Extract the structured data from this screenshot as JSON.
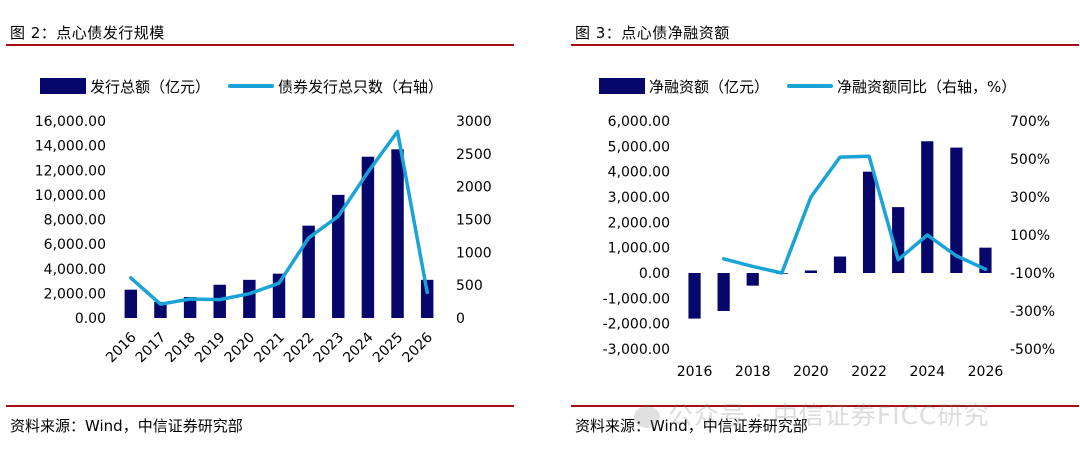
{
  "left": {
    "title": "图 2：点心债发行规模",
    "source": "资料来源：Wind，中信证券研究部",
    "legend": {
      "bar": "发行总额（亿元）",
      "line": "债券发行总只数（右轴）"
    }
  },
  "right": {
    "title": "图 3：点心债净融资额",
    "source": "资料来源：Wind，中信证券研究部",
    "legend": {
      "bar": "净融资额（亿元）",
      "line": "净融资额同比（右轴，%）"
    }
  },
  "watermark": "公众号 · 中信证券FICC研究",
  "colors": {
    "bar": "#06066b",
    "line": "#1aa3d6",
    "rule": "#a50f15"
  },
  "chart_data": [
    {
      "type": "bar",
      "title": "图 2：点心债发行规模",
      "categories": [
        "2016",
        "2017",
        "2018",
        "2019",
        "2020",
        "2021",
        "2022",
        "2023",
        "2024",
        "2025",
        "2026"
      ],
      "series": [
        {
          "name": "发行总额（亿元）",
          "type": "bar",
          "axis": "left",
          "values": [
            2300,
            1300,
            1700,
            2700,
            3100,
            3600,
            7500,
            10000,
            13100,
            13700,
            3100
          ]
        },
        {
          "name": "债券发行总只数（右轴）",
          "type": "line",
          "axis": "right",
          "values": [
            610,
            210,
            290,
            280,
            370,
            530,
            1220,
            1550,
            2220,
            2840,
            390
          ]
        }
      ],
      "ylim_left": [
        0,
        16000
      ],
      "yticks_left": [
        "16,000.00",
        "14,000.00",
        "12,000.00",
        "10,000.00",
        "8,000.00",
        "6,000.00",
        "4,000.00",
        "2,000.00",
        "0.00"
      ],
      "ylim_right": [
        0,
        3000
      ],
      "yticks_right": [
        "3000",
        "2500",
        "2000",
        "1500",
        "1000",
        "500",
        "0"
      ],
      "grid": false
    },
    {
      "type": "bar",
      "title": "图 3：点心债净融资额",
      "categories": [
        "2016",
        "2017",
        "2018",
        "2019",
        "2020",
        "2021",
        "2022",
        "2023",
        "2024",
        "2025",
        "2026"
      ],
      "xticks": [
        "2016",
        "2018",
        "2020",
        "2022",
        "2024",
        "2026"
      ],
      "series": [
        {
          "name": "净融资额（亿元）",
          "type": "bar",
          "axis": "left",
          "values": [
            -1800,
            -1500,
            -500,
            -30,
            100,
            650,
            4000,
            2600,
            5200,
            4950,
            1000
          ]
        },
        {
          "name": "净融资额同比（右轴，%）",
          "type": "line",
          "axis": "right",
          "values": [
            null,
            -25,
            -65,
            -100,
            300,
            510,
            515,
            -30,
            100,
            -10,
            -80
          ]
        }
      ],
      "ylim_left": [
        -3000,
        6000
      ],
      "yticks_left": [
        "6,000.00",
        "5,000.00",
        "4,000.00",
        "3,000.00",
        "2,000.00",
        "1,000.00",
        "0.00",
        "-1,000.00",
        "-2,000.00",
        "-3,000.00"
      ],
      "ylim_right": [
        -500,
        700
      ],
      "yticks_right": [
        "700%",
        "500%",
        "300%",
        "100%",
        "-100%",
        "-300%",
        "-500%"
      ],
      "grid": false
    }
  ]
}
